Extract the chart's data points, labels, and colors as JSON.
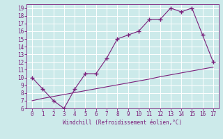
{
  "line1_x": [
    0,
    1,
    2,
    3,
    4,
    5,
    6,
    7,
    8,
    9,
    10,
    11,
    12,
    13,
    14,
    15,
    16,
    17
  ],
  "line1_y": [
    10,
    8.5,
    7,
    6,
    8.5,
    10.5,
    10.5,
    12.5,
    15,
    15.5,
    16,
    17.5,
    17.5,
    19,
    18.5,
    19,
    15.5,
    12
  ],
  "line2_x": [
    0,
    1,
    2,
    3,
    4,
    5,
    6,
    7,
    8,
    9,
    10,
    11,
    12,
    13,
    14,
    15,
    16,
    17
  ],
  "line2_y": [
    7.0,
    7.3,
    7.55,
    7.8,
    8.05,
    8.3,
    8.55,
    8.8,
    9.05,
    9.3,
    9.55,
    9.8,
    10.1,
    10.35,
    10.6,
    10.85,
    11.1,
    11.35
  ],
  "line_color": "#7b1f7b",
  "bg_color": "#cceaea",
  "xlabel": "Windchill (Refroidissement éolien,°C)",
  "xlim": [
    -0.5,
    17.5
  ],
  "ylim": [
    6,
    19.5
  ],
  "xticks": [
    0,
    1,
    2,
    3,
    4,
    5,
    6,
    7,
    8,
    9,
    10,
    11,
    12,
    13,
    14,
    15,
    16,
    17
  ],
  "yticks": [
    6,
    7,
    8,
    9,
    10,
    11,
    12,
    13,
    14,
    15,
    16,
    17,
    18,
    19
  ]
}
